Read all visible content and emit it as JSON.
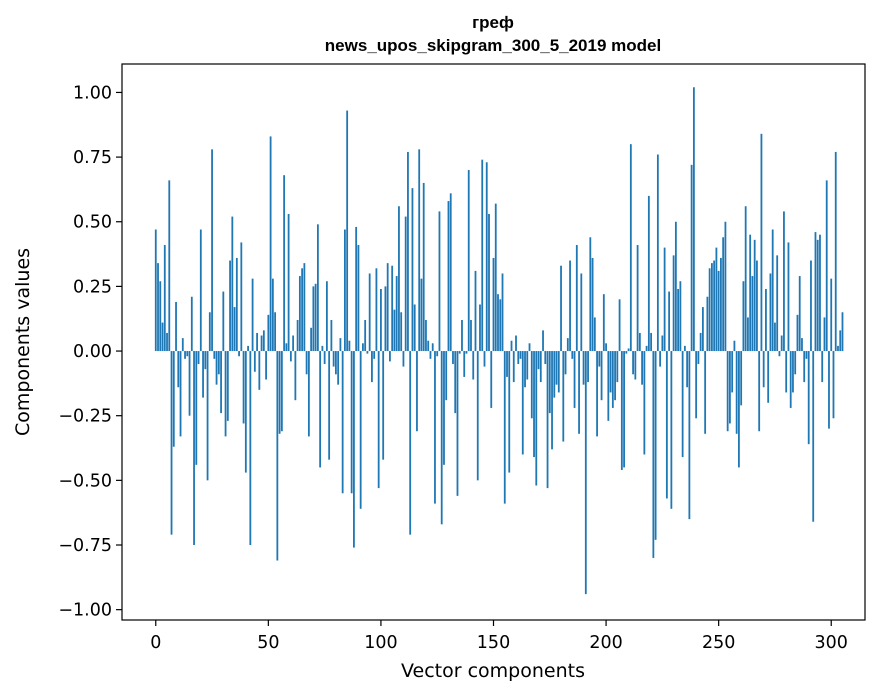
{
  "chart_data": {
    "type": "bar",
    "title_line1": "греф",
    "title_line2": "news_upos_skipgram_300_5_2019 model",
    "xlabel": "Vector components",
    "ylabel": "Components values",
    "xlim": [
      -15,
      315
    ],
    "ylim": [
      -1.04,
      1.11
    ],
    "xticks": [
      0,
      50,
      100,
      150,
      200,
      250,
      300
    ],
    "yticks": [
      -1.0,
      -0.75,
      -0.5,
      -0.25,
      0.0,
      0.25,
      0.5,
      0.75,
      1.0
    ],
    "ytick_labels": [
      "−1.00",
      "−0.75",
      "−0.50",
      "−0.25",
      "0.00",
      "0.25",
      "0.50",
      "0.75",
      "1.00"
    ],
    "bar_color": "#1f77b4",
    "values": [
      0.47,
      0.34,
      0.27,
      0.11,
      0.41,
      0.07,
      0.66,
      -0.71,
      -0.37,
      0.19,
      -0.14,
      -0.33,
      0.05,
      -0.03,
      -0.02,
      -0.25,
      0.21,
      -0.75,
      -0.44,
      -0.05,
      0.47,
      -0.18,
      -0.07,
      -0.5,
      0.15,
      0.78,
      -0.03,
      -0.13,
      -0.09,
      -0.24,
      0.23,
      -0.33,
      -0.27,
      0.35,
      0.52,
      0.17,
      0.36,
      -0.02,
      0.42,
      -0.28,
      -0.47,
      0.02,
      -0.75,
      0.28,
      -0.08,
      0.07,
      -0.15,
      0.06,
      0.08,
      -0.11,
      0.14,
      0.83,
      0.28,
      0.15,
      -0.81,
      -0.32,
      -0.31,
      0.68,
      0.03,
      0.53,
      -0.04,
      0.06,
      -0.19,
      0.12,
      0.29,
      0.32,
      0.34,
      -0.09,
      -0.33,
      0.09,
      0.25,
      0.26,
      0.49,
      -0.45,
      0.02,
      -0.05,
      0.27,
      -0.42,
      0.12,
      -0.06,
      -0.09,
      -0.13,
      0.05,
      -0.55,
      0.47,
      0.93,
      0.04,
      -0.55,
      -0.76,
      0.48,
      0.41,
      -0.61,
      0.03,
      0.12,
      -0.01,
      0.3,
      -0.12,
      -0.03,
      0.32,
      -0.53,
      0.24,
      -0.42,
      0.25,
      0.34,
      -0.04,
      0.33,
      0.16,
      0.29,
      0.56,
      0.15,
      -0.06,
      0.52,
      0.77,
      -0.71,
      0.63,
      0.18,
      -0.31,
      0.78,
      0.28,
      0.65,
      0.12,
      0.04,
      -0.03,
      0.03,
      -0.59,
      -0.02,
      0.54,
      -0.67,
      -0.44,
      -0.19,
      0.58,
      0.61,
      -0.05,
      -0.24,
      -0.56,
      -0.01,
      0.12,
      -0.1,
      -0.01,
      0.7,
      0.12,
      -0.11,
      0.31,
      -0.5,
      0.18,
      0.74,
      -0.06,
      0.73,
      0.53,
      -0.22,
      0.36,
      0.57,
      0.22,
      0.2,
      0.3,
      -0.59,
      -0.1,
      -0.47,
      0.04,
      -0.12,
      0.06,
      -0.05,
      -0.03,
      -0.4,
      -0.14,
      -0.11,
      0.03,
      -0.26,
      -0.41,
      -0.52,
      -0.07,
      -0.12,
      0.08,
      -0.05,
      -0.53,
      -0.24,
      -0.38,
      -0.18,
      -0.13,
      -0.16,
      0.33,
      -0.35,
      -0.09,
      0.05,
      0.35,
      -0.03,
      -0.22,
      0.41,
      -0.32,
      0.3,
      -0.13,
      -0.94,
      -0.12,
      0.44,
      0.36,
      0.13,
      -0.33,
      -0.06,
      -0.19,
      0.22,
      0.03,
      -0.27,
      -0.16,
      -0.22,
      -0.19,
      -0.12,
      0.2,
      -0.46,
      -0.45,
      -0.01,
      0.01,
      0.8,
      -0.09,
      -0.11,
      0.41,
      0.07,
      -0.13,
      -0.4,
      0.02,
      0.6,
      0.07,
      -0.8,
      -0.73,
      0.76,
      -0.06,
      0.06,
      0.4,
      -0.57,
      0.23,
      -0.61,
      0.37,
      0.5,
      0.24,
      0.27,
      -0.41,
      0.02,
      -0.14,
      -0.65,
      0.72,
      1.02,
      -0.26,
      -0.05,
      0.07,
      0.17,
      -0.32,
      0.21,
      0.32,
      0.34,
      0.35,
      0.4,
      0.31,
      0.36,
      0.44,
      0.5,
      -0.31,
      -0.28,
      -0.16,
      0.04,
      -0.32,
      -0.45,
      -0.21,
      0.27,
      0.56,
      0.13,
      0.45,
      0.29,
      0.43,
      0.35,
      -0.31,
      0.84,
      -0.14,
      0.24,
      -0.2,
      0.3,
      0.47,
      0.11,
      0.37,
      -0.02,
      0.06,
      0.54,
      -0.16,
      0.42,
      -0.22,
      -0.16,
      -0.09,
      0.14,
      0.29,
      0.05,
      -0.12,
      -0.03,
      -0.36,
      0.35,
      -0.66,
      0.46,
      0.43,
      0.45,
      -0.12,
      0.13,
      0.66,
      -0.3,
      0.28,
      -0.26,
      0.77,
      0.02,
      0.08,
      0.15
    ]
  }
}
